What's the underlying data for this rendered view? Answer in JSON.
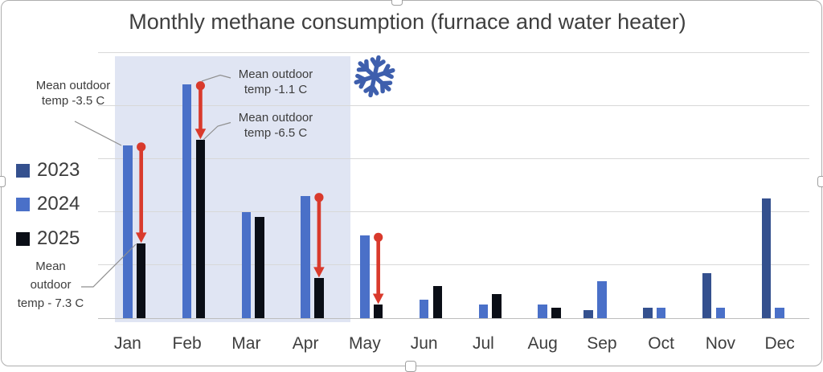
{
  "chart_data": {
    "type": "bar",
    "title": "Monthly methane consumption (furnace and water heater)",
    "categories": [
      "Jan",
      "Feb",
      "Mar",
      "Apr",
      "May",
      "Jun",
      "Jul",
      "Aug",
      "Sep",
      "Oct",
      "Nov",
      "Dec"
    ],
    "series": [
      {
        "name": "2023",
        "color_key": "y2023",
        "values": [
          null,
          null,
          null,
          null,
          null,
          null,
          null,
          null,
          3,
          4,
          17,
          45
        ]
      },
      {
        "name": "2024",
        "color_key": "y2024",
        "values": [
          65,
          88,
          40,
          46,
          31,
          7,
          5,
          5,
          14,
          4,
          4,
          4
        ]
      },
      {
        "name": "2025",
        "color_key": "y2025",
        "values": [
          28,
          67,
          38,
          15,
          5,
          12,
          9,
          4,
          null,
          null,
          null,
          null
        ]
      }
    ],
    "ylim": [
      0,
      100
    ],
    "gridline_step": 20,
    "y_axis_visible": false,
    "legend_position": "left",
    "highlight_region": {
      "months": [
        "Jan",
        "Feb",
        "Mar",
        "Apr"
      ],
      "meaning": "cold-season band"
    }
  },
  "annotations": {
    "jan_2024": {
      "line1": "Mean outdoor",
      "line2": "temp -3.5 C"
    },
    "feb_2024": {
      "line1": "Mean outdoor",
      "line2": "temp -1.1 C"
    },
    "feb_2025": {
      "line1": "Mean outdoor",
      "line2": "temp -6.5 C"
    },
    "jan_2025": {
      "line1": "Mean",
      "line2": "outdoor",
      "line3": "temp - 7.3 C"
    },
    "arrow_months": [
      "Jan",
      "Feb",
      "Apr",
      "May"
    ]
  },
  "icons": {
    "snowflake": "❄"
  },
  "colors": {
    "y2023": "#34508e",
    "y2024": "#4a70c8",
    "y2025": "#0a0e16",
    "arrow": "#d93a2c",
    "snowflake": "#3e5fad",
    "shade": "#e0e5f3",
    "grid": "#d8d8d8",
    "leader": "#8f8f8f",
    "text": "#3d3d3d"
  }
}
